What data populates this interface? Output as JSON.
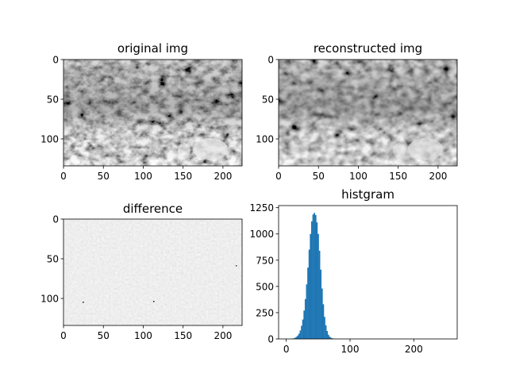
{
  "chart_data": [
    {
      "type": "image",
      "title": "original img",
      "colormap": "gray",
      "x_ticks": [
        0,
        50,
        100,
        150,
        200
      ],
      "y_ticks": [
        0,
        50,
        100
      ],
      "xlim": [
        0,
        224
      ],
      "ylim": [
        134,
        0
      ],
      "image_size": [
        224,
        134
      ]
    },
    {
      "type": "image",
      "title": "reconstructed img",
      "colormap": "gray",
      "x_ticks": [
        0,
        50,
        100,
        150,
        200
      ],
      "y_ticks": [
        0,
        50,
        100
      ],
      "xlim": [
        0,
        224
      ],
      "ylim": [
        134,
        0
      ],
      "image_size": [
        224,
        134
      ]
    },
    {
      "type": "image",
      "title": "difference",
      "colormap": "gray",
      "x_ticks": [
        0,
        50,
        100,
        150,
        200
      ],
      "y_ticks": [
        0,
        50,
        100
      ],
      "xlim": [
        0,
        224
      ],
      "ylim": [
        134,
        0
      ],
      "image_size": [
        224,
        134
      ]
    },
    {
      "type": "bar",
      "title": "histgram",
      "color": "#1f77b4",
      "x_ticks": [
        0,
        100,
        200
      ],
      "y_ticks": [
        0,
        250,
        500,
        750,
        1000,
        1250
      ],
      "xlim": [
        -12,
        268
      ],
      "ylim": [
        0,
        1270
      ],
      "x": [
        8,
        10,
        12,
        14,
        16,
        18,
        20,
        22,
        24,
        26,
        28,
        30,
        32,
        34,
        36,
        38,
        40,
        42,
        44,
        46,
        48,
        50,
        52,
        54,
        56,
        58,
        60,
        62,
        64,
        66,
        68,
        70,
        72,
        74,
        76,
        78,
        80
      ],
      "values": [
        1,
        3,
        6,
        12,
        20,
        32,
        50,
        80,
        125,
        185,
        270,
        380,
        520,
        680,
        850,
        1000,
        1120,
        1185,
        1200,
        1180,
        1110,
        1000,
        840,
        660,
        480,
        330,
        210,
        130,
        75,
        40,
        22,
        12,
        6,
        3,
        2,
        1,
        1
      ]
    }
  ]
}
